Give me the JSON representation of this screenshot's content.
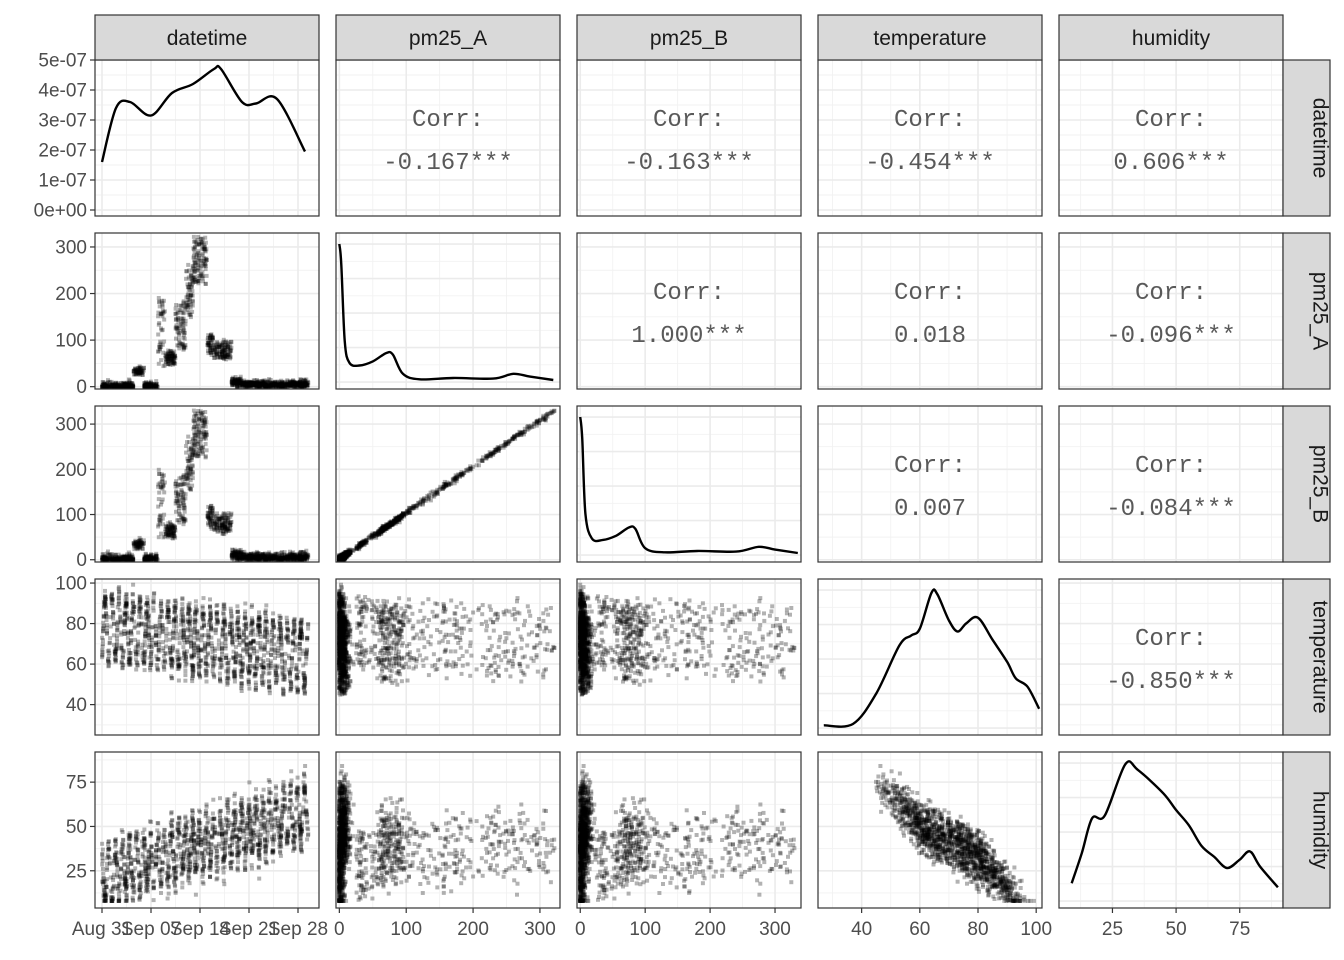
{
  "chart_data": {
    "type": "scatter-matrix",
    "variables": [
      "datetime",
      "pm25_A",
      "pm25_B",
      "temperature",
      "humidity"
    ],
    "axes": {
      "datetime": {
        "range": [
          "2020-08-30",
          "2020-10-01"
        ],
        "ticks": [
          {
            "value": "2020-08-31",
            "label": "Aug 31"
          },
          {
            "value": "2020-09-07",
            "label": "Sep 07"
          },
          {
            "value": "2020-09-14",
            "label": "Sep 14"
          },
          {
            "value": "2020-09-21",
            "label": "Sep 21"
          },
          {
            "value": "2020-09-28",
            "label": "Sep 28"
          }
        ]
      },
      "pm25_A": {
        "range": [
          -5,
          330
        ],
        "ticks": [
          0,
          100,
          200,
          300
        ]
      },
      "pm25_B": {
        "range": [
          -5,
          340
        ],
        "ticks": [
          0,
          100,
          200,
          300
        ]
      },
      "temperature": {
        "range": [
          25,
          102
        ],
        "ticks": [
          40,
          60,
          80,
          100
        ]
      },
      "humidity": {
        "range": [
          4,
          92
        ],
        "ticks": [
          25,
          50,
          75
        ]
      }
    },
    "datetime_density": {
      "ylim": [
        -2e-08,
        5e-07
      ],
      "yticks": [
        {
          "value": 0,
          "label": "0e+00"
        },
        {
          "value": 1e-07,
          "label": "1e-07"
        },
        {
          "value": 2e-07,
          "label": "2e-07"
        },
        {
          "value": 3e-07,
          "label": "3e-07"
        },
        {
          "value": 4e-07,
          "label": "4e-07"
        },
        {
          "value": 5e-07,
          "label": "5e-07"
        }
      ]
    },
    "correlations": [
      {
        "x": "pm25_A",
        "y": "datetime",
        "label": "Corr:",
        "value": "-0.167***"
      },
      {
        "x": "pm25_B",
        "y": "datetime",
        "label": "Corr:",
        "value": "-0.163***"
      },
      {
        "x": "temperature",
        "y": "datetime",
        "label": "Corr:",
        "value": "-0.454***"
      },
      {
        "x": "humidity",
        "y": "datetime",
        "label": "Corr:",
        "value": "0.606***"
      },
      {
        "x": "pm25_B",
        "y": "pm25_A",
        "label": "Corr:",
        "value": "1.000***"
      },
      {
        "x": "temperature",
        "y": "pm25_A",
        "label": "Corr:",
        "value": "0.018"
      },
      {
        "x": "humidity",
        "y": "pm25_A",
        "label": "Corr:",
        "value": "-0.096***"
      },
      {
        "x": "temperature",
        "y": "pm25_B",
        "label": "Corr:",
        "value": "0.007"
      },
      {
        "x": "humidity",
        "y": "pm25_B",
        "label": "Corr:",
        "value": "-0.084***"
      },
      {
        "x": "humidity",
        "y": "temperature",
        "label": "Corr:",
        "value": "-0.850***"
      }
    ],
    "densities": {
      "datetime": [
        [
          "2020-08-31",
          1.6e-07
        ],
        [
          "2020-09-02",
          3.4e-07
        ],
        [
          "2020-09-04",
          3.6e-07
        ],
        [
          "2020-09-07",
          3.15e-07
        ],
        [
          "2020-09-10",
          3.9e-07
        ],
        [
          "2020-09-13",
          4.2e-07
        ],
        [
          "2020-09-16",
          4.7e-07
        ],
        [
          "2020-09-17",
          4.7e-07
        ],
        [
          "2020-09-20",
          3.6e-07
        ],
        [
          "2020-09-22",
          3.55e-07
        ],
        [
          "2020-09-25",
          3.7e-07
        ],
        [
          "2020-09-29",
          1.95e-07
        ]
      ],
      "pm25_A": [
        [
          0,
          1.0
        ],
        [
          3,
          0.85
        ],
        [
          8,
          0.3
        ],
        [
          15,
          0.14
        ],
        [
          30,
          0.12
        ],
        [
          50,
          0.15
        ],
        [
          70,
          0.21
        ],
        [
          80,
          0.2
        ],
        [
          95,
          0.06
        ],
        [
          120,
          0.02
        ],
        [
          170,
          0.03
        ],
        [
          230,
          0.025
        ],
        [
          260,
          0.06
        ],
        [
          285,
          0.04
        ],
        [
          320,
          0.015
        ]
      ],
      "pm25_B": [
        [
          0,
          1.0
        ],
        [
          3,
          0.85
        ],
        [
          8,
          0.3
        ],
        [
          18,
          0.12
        ],
        [
          35,
          0.11
        ],
        [
          55,
          0.14
        ],
        [
          75,
          0.2
        ],
        [
          85,
          0.19
        ],
        [
          100,
          0.05
        ],
        [
          130,
          0.02
        ],
        [
          180,
          0.03
        ],
        [
          240,
          0.025
        ],
        [
          275,
          0.06
        ],
        [
          300,
          0.04
        ],
        [
          335,
          0.015
        ]
      ],
      "temperature": [
        [
          27,
          0.02
        ],
        [
          37,
          0.03
        ],
        [
          45,
          0.25
        ],
        [
          53,
          0.6
        ],
        [
          57,
          0.67
        ],
        [
          60,
          0.72
        ],
        [
          64,
          0.98
        ],
        [
          66,
          0.97
        ],
        [
          70,
          0.78
        ],
        [
          73,
          0.7
        ],
        [
          76,
          0.76
        ],
        [
          80,
          0.8
        ],
        [
          85,
          0.64
        ],
        [
          90,
          0.48
        ],
        [
          93,
          0.36
        ],
        [
          97,
          0.3
        ],
        [
          101,
          0.14
        ]
      ],
      "humidity": [
        [
          9,
          0.13
        ],
        [
          13,
          0.35
        ],
        [
          17,
          0.6
        ],
        [
          22,
          0.62
        ],
        [
          30,
          0.99
        ],
        [
          35,
          0.95
        ],
        [
          45,
          0.78
        ],
        [
          50,
          0.66
        ],
        [
          55,
          0.55
        ],
        [
          60,
          0.4
        ],
        [
          65,
          0.32
        ],
        [
          70,
          0.24
        ],
        [
          75,
          0.3
        ],
        [
          79,
          0.36
        ],
        [
          83,
          0.25
        ],
        [
          90,
          0.1
        ]
      ]
    },
    "scatter_note": "lower-triangle panels show all pairwise observations as translucent points"
  }
}
